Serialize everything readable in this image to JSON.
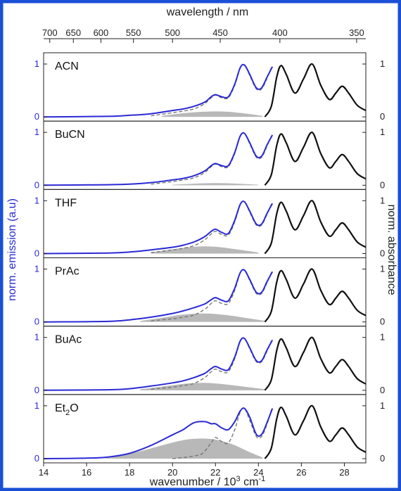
{
  "chart_data": {
    "type": "line",
    "frame_color": "#1a4fd6",
    "emission_color": "#2a2ad6",
    "absorbance_color": "#111111",
    "fit_color": "#777777",
    "fill_color": "#b8b8b8",
    "top_axis": {
      "label": "wavelength / nm",
      "ticks": [
        700,
        650,
        600,
        550,
        500,
        450,
        400,
        350
      ],
      "tick_labels": [
        "700",
        "650",
        "600",
        "550",
        "500",
        "450",
        "400",
        "350"
      ]
    },
    "bottom_axis": {
      "label_main": "wavenumber / 10",
      "label_sup1": "3",
      "label_mid": " cm",
      "label_sup2": "-1",
      "ticks": [
        14,
        16,
        18,
        20,
        22,
        24,
        26,
        28
      ],
      "tick_labels": [
        "14",
        "16",
        "18",
        "20",
        "22",
        "24",
        "26",
        "28"
      ],
      "xlim": [
        14,
        29
      ]
    },
    "left_axis": {
      "label": "norm. emission (a.u)",
      "ticks": [
        0,
        1
      ],
      "tick_labels": [
        "0",
        "1"
      ]
    },
    "right_axis": {
      "label": "norm. absorbance",
      "ticks": [
        0,
        1
      ],
      "tick_labels": [
        "0",
        "1"
      ]
    },
    "absorbance": {
      "x": [
        24.3,
        24.6,
        24.85,
        25.05,
        25.3,
        25.7,
        26.1,
        26.5,
        26.9,
        27.3,
        27.6,
        27.9,
        28.2,
        28.6,
        29.0
      ],
      "y": [
        0.0,
        0.2,
        0.75,
        0.97,
        0.8,
        0.45,
        0.72,
        1.0,
        0.6,
        0.33,
        0.45,
        0.58,
        0.45,
        0.22,
        0.12
      ]
    },
    "panels": [
      {
        "name": "ACN",
        "name_sub": "",
        "emission": {
          "x": [
            14,
            17,
            18,
            19,
            20,
            20.5,
            21,
            21.5,
            21.8,
            22.0,
            22.3,
            22.6,
            22.9,
            23.15,
            23.35,
            23.6,
            23.9,
            24.15,
            24.4,
            24.65
          ],
          "y": [
            0.0,
            0.01,
            0.03,
            0.06,
            0.12,
            0.15,
            0.2,
            0.28,
            0.38,
            0.42,
            0.38,
            0.38,
            0.62,
            0.93,
            0.98,
            0.8,
            0.55,
            0.55,
            0.75,
            0.95
          ]
        },
        "fit": {
          "x": [
            19,
            20,
            20.5,
            21,
            21.5,
            21.8,
            22.0,
            22.3,
            22.6,
            22.9,
            23.15,
            23.35,
            23.6,
            23.9,
            24.15,
            24.4,
            24.6
          ],
          "y": [
            0.02,
            0.08,
            0.11,
            0.15,
            0.25,
            0.36,
            0.41,
            0.36,
            0.36,
            0.6,
            0.92,
            0.98,
            0.78,
            0.53,
            0.53,
            0.73,
            0.93
          ]
        },
        "shade": {
          "x": [
            19.5,
            20.5,
            21.5,
            22.5,
            23.5,
            24.2
          ],
          "y": [
            0.02,
            0.07,
            0.1,
            0.1,
            0.06,
            0.02
          ]
        }
      },
      {
        "name": "BuCN",
        "name_sub": "",
        "emission": {
          "x": [
            14,
            17,
            18,
            19,
            20,
            20.5,
            21,
            21.5,
            21.8,
            22.0,
            22.3,
            22.6,
            22.9,
            23.15,
            23.35,
            23.6,
            23.9,
            24.15,
            24.4,
            24.65
          ],
          "y": [
            0.0,
            0.01,
            0.02,
            0.05,
            0.1,
            0.13,
            0.18,
            0.27,
            0.37,
            0.41,
            0.37,
            0.37,
            0.62,
            0.93,
            0.98,
            0.8,
            0.55,
            0.55,
            0.76,
            0.95
          ]
        },
        "fit": {
          "x": [
            19,
            20,
            20.5,
            21,
            21.5,
            21.8,
            22.0,
            22.3,
            22.6,
            22.9,
            23.15,
            23.35,
            23.6,
            23.9,
            24.15,
            24.4,
            24.6
          ],
          "y": [
            0.02,
            0.07,
            0.1,
            0.14,
            0.24,
            0.35,
            0.4,
            0.35,
            0.35,
            0.6,
            0.92,
            0.98,
            0.78,
            0.53,
            0.53,
            0.74,
            0.93
          ]
        },
        "shade": {
          "x": [
            20.0,
            21.0,
            22.0,
            23.0,
            24.0
          ],
          "y": [
            0.01,
            0.03,
            0.04,
            0.03,
            0.01
          ]
        }
      },
      {
        "name": "THF",
        "name_sub": "",
        "emission": {
          "x": [
            14,
            17,
            18,
            19,
            20,
            20.5,
            21,
            21.5,
            21.8,
            22.0,
            22.3,
            22.6,
            22.9,
            23.15,
            23.35,
            23.6,
            23.9,
            24.15,
            24.4,
            24.65
          ],
          "y": [
            0.0,
            0.01,
            0.03,
            0.07,
            0.12,
            0.16,
            0.22,
            0.32,
            0.42,
            0.46,
            0.4,
            0.38,
            0.63,
            0.93,
            0.98,
            0.8,
            0.56,
            0.56,
            0.76,
            0.95
          ]
        },
        "fit": {
          "x": [
            19,
            20,
            20.5,
            21,
            21.5,
            21.8,
            22.0,
            22.3,
            22.6,
            22.9,
            23.15,
            23.35,
            23.6,
            23.9,
            24.15,
            24.4,
            24.6
          ],
          "y": [
            0.02,
            0.07,
            0.1,
            0.15,
            0.26,
            0.37,
            0.42,
            0.36,
            0.35,
            0.6,
            0.92,
            0.98,
            0.78,
            0.54,
            0.54,
            0.74,
            0.93
          ]
        },
        "shade": {
          "x": [
            19.0,
            20.0,
            21.0,
            22.0,
            23.0,
            24.0
          ],
          "y": [
            0.02,
            0.08,
            0.13,
            0.13,
            0.08,
            0.02
          ]
        }
      },
      {
        "name": "PrAc",
        "name_sub": "",
        "emission": {
          "x": [
            14,
            17,
            18,
            19,
            20,
            20.5,
            21,
            21.5,
            21.8,
            22.0,
            22.3,
            22.6,
            22.9,
            23.15,
            23.35,
            23.6,
            23.9,
            24.15,
            24.4,
            24.65
          ],
          "y": [
            0.0,
            0.01,
            0.04,
            0.09,
            0.16,
            0.21,
            0.27,
            0.34,
            0.42,
            0.46,
            0.41,
            0.4,
            0.64,
            0.93,
            0.98,
            0.8,
            0.56,
            0.56,
            0.76,
            0.95
          ]
        },
        "fit": {
          "x": [
            19,
            20,
            20.5,
            21,
            21.5,
            21.8,
            22.0,
            22.3,
            22.6,
            22.9,
            23.15,
            23.35,
            23.6,
            23.9,
            24.15,
            24.4,
            24.6
          ],
          "y": [
            0.02,
            0.06,
            0.09,
            0.13,
            0.24,
            0.35,
            0.4,
            0.35,
            0.35,
            0.6,
            0.92,
            0.98,
            0.78,
            0.54,
            0.54,
            0.74,
            0.93
          ]
        },
        "shade": {
          "x": [
            18.5,
            19.5,
            20.5,
            21.5,
            22.5,
            23.5,
            24.3
          ],
          "y": [
            0.02,
            0.08,
            0.14,
            0.16,
            0.13,
            0.07,
            0.02
          ]
        }
      },
      {
        "name": "BuAc",
        "name_sub": "",
        "emission": {
          "x": [
            14,
            17,
            18,
            19,
            20,
            20.5,
            21,
            21.5,
            21.8,
            22.0,
            22.3,
            22.6,
            22.9,
            23.15,
            23.35,
            23.6,
            23.9,
            24.15,
            24.4,
            24.65
          ],
          "y": [
            0.0,
            0.01,
            0.03,
            0.08,
            0.14,
            0.18,
            0.24,
            0.32,
            0.41,
            0.45,
            0.4,
            0.39,
            0.63,
            0.93,
            0.98,
            0.8,
            0.56,
            0.56,
            0.76,
            0.95
          ]
        },
        "fit": {
          "x": [
            19,
            20,
            20.5,
            21,
            21.5,
            21.8,
            22.0,
            22.3,
            22.6,
            22.9,
            23.15,
            23.35,
            23.6,
            23.9,
            24.15,
            24.4,
            24.6
          ],
          "y": [
            0.02,
            0.06,
            0.09,
            0.13,
            0.24,
            0.35,
            0.4,
            0.35,
            0.35,
            0.6,
            0.92,
            0.98,
            0.78,
            0.54,
            0.54,
            0.74,
            0.93
          ]
        },
        "shade": {
          "x": [
            18.5,
            19.5,
            20.5,
            21.5,
            22.5,
            23.5,
            24.3
          ],
          "y": [
            0.02,
            0.07,
            0.12,
            0.14,
            0.11,
            0.06,
            0.02
          ]
        }
      },
      {
        "name": "Et",
        "name_sub": "2",
        "name_tail": "O",
        "emission": {
          "x": [
            14,
            16,
            17,
            18,
            19,
            20,
            20.5,
            21,
            21.5,
            21.8,
            22.0,
            22.3,
            22.6,
            22.9,
            23.15,
            23.35,
            23.6,
            23.9,
            24.15,
            24.4,
            24.65
          ],
          "y": [
            0.0,
            0.01,
            0.03,
            0.1,
            0.25,
            0.45,
            0.55,
            0.68,
            0.7,
            0.66,
            0.66,
            0.58,
            0.55,
            0.7,
            0.9,
            0.95,
            0.78,
            0.46,
            0.46,
            0.68,
            0.95
          ]
        },
        "fit": {
          "x": [
            20.0,
            20.5,
            21.0,
            21.4,
            21.8,
            22.0,
            22.3,
            22.6,
            22.9,
            23.15,
            23.35,
            23.6,
            23.9,
            24.15,
            24.4,
            24.6
          ],
          "y": [
            0.0,
            0.02,
            0.05,
            0.1,
            0.3,
            0.4,
            0.32,
            0.3,
            0.55,
            0.88,
            0.95,
            0.72,
            0.42,
            0.42,
            0.65,
            0.92
          ]
        },
        "shade": {
          "x": [
            16.8,
            17.5,
            18.5,
            19.5,
            20.5,
            21.3,
            22.0,
            22.8,
            23.5,
            24.2
          ],
          "y": [
            0.0,
            0.05,
            0.14,
            0.25,
            0.35,
            0.38,
            0.36,
            0.27,
            0.14,
            0.02
          ]
        }
      }
    ]
  }
}
